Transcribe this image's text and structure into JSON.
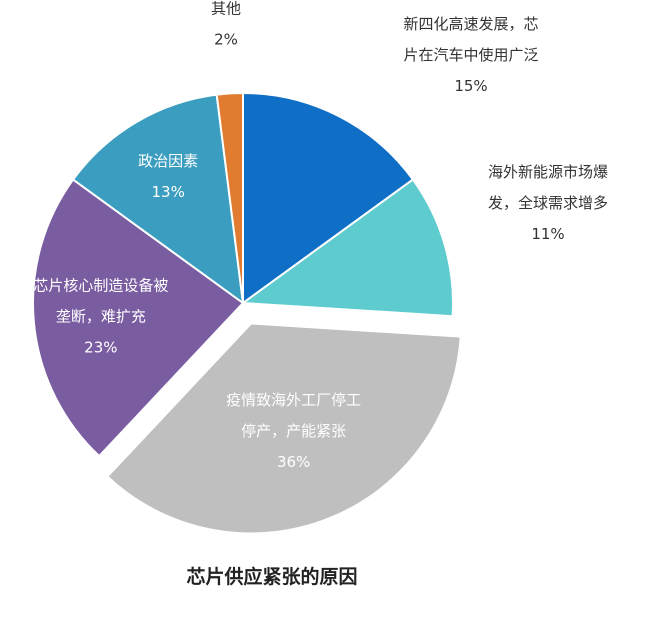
{
  "chart_data": {
    "type": "pie",
    "title": "芯片供应紧张的原因",
    "slices": [
      {
        "label_lines": [
          "新四化高速发展，芯",
          "片在汽车中使用广泛"
        ],
        "value": 15,
        "value_label": "15%",
        "color": "#0f6fc6",
        "label_color": "#333333"
      },
      {
        "label_lines": [
          "海外新能源市场爆",
          "发，全球需求增多"
        ],
        "value": 11,
        "value_label": "11%",
        "color": "#5ecbce",
        "label_color": "#333333"
      },
      {
        "label_lines": [
          "疫情致海外工厂停工",
          "停产，产能紧张"
        ],
        "value": 36,
        "value_label": "36%",
        "color": "#bfbfbf",
        "label_color": "#ffffff",
        "exploded": true
      },
      {
        "label_lines": [
          "芯片核心制造设备被",
          "垄断，难扩充"
        ],
        "value": 23,
        "value_label": "23%",
        "color": "#7a5ca1",
        "label_color": "#ffffff"
      },
      {
        "label_lines": [
          "政治因素"
        ],
        "value": 13,
        "value_label": "13%",
        "color": "#3b9dbf",
        "label_color": "#ffffff"
      },
      {
        "label_lines": [
          "其他"
        ],
        "value": 2,
        "value_label": "2%",
        "color": "#e07b30",
        "label_color": "#333333"
      }
    ]
  }
}
